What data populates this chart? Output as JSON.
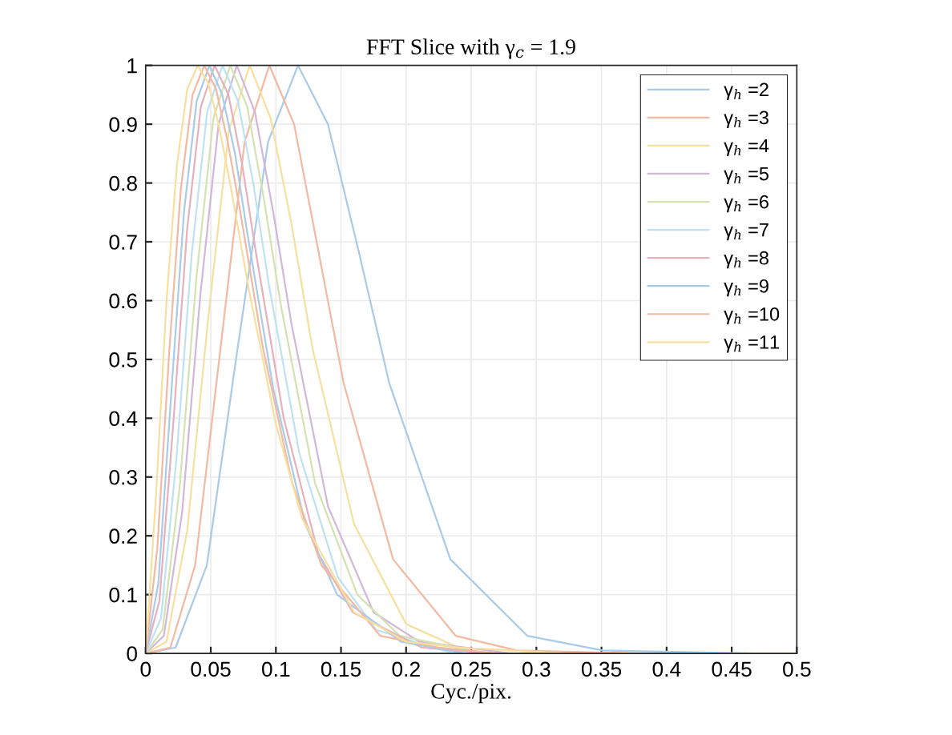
{
  "chart_data": {
    "type": "line",
    "title": "FFT Slice with γ$_{c}$ = 1.9",
    "xlabel": "Cyc./pix.",
    "xlim": [
      0,
      0.5
    ],
    "ylim": [
      0,
      1
    ],
    "xticks": [
      0,
      0.05,
      0.1,
      0.15,
      0.2,
      0.25,
      0.3,
      0.35,
      0.4,
      0.45,
      0.5
    ],
    "yticks": [
      0,
      0.1,
      0.2,
      0.3,
      0.4,
      0.5,
      0.6,
      0.7,
      0.8,
      0.9,
      1
    ],
    "grid": true,
    "legend": "top right",
    "line_style": "solid",
    "marker": "none",
    "series": [
      {
        "name": "γ$_{h}$ =2",
        "color": "#a9cbe8",
        "x": [
          0,
          0.023,
          0.047,
          0.07,
          0.094,
          0.117,
          0.14,
          0.164,
          0.187,
          0.234,
          0.293,
          0.351,
          0.468,
          0.5
        ],
        "values": [
          0,
          0.01,
          0.15,
          0.51,
          0.87,
          1,
          0.9,
          0.68,
          0.46,
          0.16,
          0.03,
          0.005,
          0,
          0
        ]
      },
      {
        "name": "γ$_{h}$ =3",
        "color": "#f2b9a3",
        "x": [
          0,
          0.019,
          0.038,
          0.057,
          0.076,
          0.095,
          0.114,
          0.133,
          0.152,
          0.19,
          0.238,
          0.285,
          0.38,
          0.5
        ],
        "values": [
          0,
          0.01,
          0.15,
          0.51,
          0.87,
          1,
          0.9,
          0.68,
          0.46,
          0.16,
          0.03,
          0.005,
          0,
          0
        ]
      },
      {
        "name": "γ$_{h}$ =4",
        "color": "#f7dfa0",
        "x": [
          0,
          0.016,
          0.032,
          0.048,
          0.064,
          0.08,
          0.096,
          0.112,
          0.128,
          0.16,
          0.2,
          0.24,
          0.32,
          0.4,
          0.5
        ],
        "values": [
          0,
          0.02,
          0.21,
          0.57,
          0.89,
          1,
          0.91,
          0.73,
          0.52,
          0.22,
          0.05,
          0.01,
          0,
          0,
          0
        ]
      },
      {
        "name": "γ$_{h}$ =5",
        "color": "#d2b8d8",
        "x": [
          0,
          0.014,
          0.028,
          0.042,
          0.056,
          0.07,
          0.084,
          0.098,
          0.112,
          0.14,
          0.175,
          0.21,
          0.28,
          0.35,
          0.5
        ],
        "values": [
          0,
          0.03,
          0.24,
          0.61,
          0.9,
          1,
          0.92,
          0.75,
          0.56,
          0.25,
          0.07,
          0.02,
          0,
          0,
          0
        ]
      },
      {
        "name": "γ$_{h}$ =6",
        "color": "#d3e2b0",
        "x": [
          0,
          0.013,
          0.026,
          0.039,
          0.052,
          0.065,
          0.078,
          0.091,
          0.104,
          0.13,
          0.1625,
          0.195,
          0.26,
          0.325,
          0.5
        ],
        "values": [
          0,
          0.04,
          0.28,
          0.64,
          0.91,
          1,
          0.93,
          0.77,
          0.59,
          0.29,
          0.1,
          0.03,
          0,
          0,
          0
        ]
      },
      {
        "name": "γ$_{h}$ =7",
        "color": "#bde2f3",
        "x": [
          0,
          0.0118,
          0.0236,
          0.0354,
          0.0472,
          0.059,
          0.0708,
          0.0826,
          0.0944,
          0.118,
          0.1475,
          0.177,
          0.236,
          0.295,
          0.5
        ],
        "values": [
          0,
          0.06,
          0.33,
          0.68,
          0.92,
          1,
          0.94,
          0.8,
          0.63,
          0.34,
          0.13,
          0.04,
          0,
          0,
          0
        ]
      },
      {
        "name": "γ$_{h}$ =8",
        "color": "#e6b0bd",
        "x": [
          0,
          0.0106,
          0.0212,
          0.0318,
          0.0424,
          0.053,
          0.0636,
          0.0742,
          0.0848,
          0.106,
          0.1325,
          0.159,
          0.212,
          0.265,
          0.318,
          0.5
        ],
        "values": [
          0,
          0.09,
          0.39,
          0.72,
          0.93,
          1,
          0.95,
          0.83,
          0.68,
          0.4,
          0.17,
          0.07,
          0.01,
          0,
          0,
          0
        ]
      },
      {
        "name": "γ$_{h}$ =9",
        "color": "#a9cbe8",
        "x": [
          0,
          0.0098,
          0.0196,
          0.0294,
          0.0392,
          0.049,
          0.0588,
          0.0686,
          0.0784,
          0.098,
          0.1225,
          0.147,
          0.196,
          0.245,
          0.294,
          0.5
        ],
        "values": [
          0,
          0.12,
          0.44,
          0.75,
          0.94,
          1,
          0.95,
          0.85,
          0.71,
          0.45,
          0.22,
          0.1,
          0.02,
          0,
          0,
          0
        ]
      },
      {
        "name": "γ$_{h}$ =10",
        "color": "#f2b9a3",
        "x": [
          0,
          0.009,
          0.018,
          0.027,
          0.036,
          0.045,
          0.054,
          0.063,
          0.072,
          0.09,
          0.1125,
          0.135,
          0.18,
          0.225,
          0.27,
          0.36,
          0.5
        ],
        "values": [
          0,
          0.18,
          0.51,
          0.79,
          0.95,
          1,
          0.96,
          0.87,
          0.76,
          0.52,
          0.29,
          0.15,
          0.03,
          0.01,
          0,
          0,
          0
        ]
      },
      {
        "name": "γ$_{h}$ =11",
        "color": "#f7dfa0",
        "x": [
          0,
          0.008,
          0.016,
          0.024,
          0.032,
          0.04,
          0.048,
          0.056,
          0.064,
          0.08,
          0.1,
          0.12,
          0.16,
          0.2,
          0.24,
          0.32,
          0.5
        ],
        "values": [
          0,
          0.27,
          0.6,
          0.83,
          0.96,
          1,
          0.97,
          0.9,
          0.81,
          0.61,
          0.39,
          0.23,
          0.07,
          0.02,
          0.01,
          0,
          0
        ]
      }
    ]
  }
}
